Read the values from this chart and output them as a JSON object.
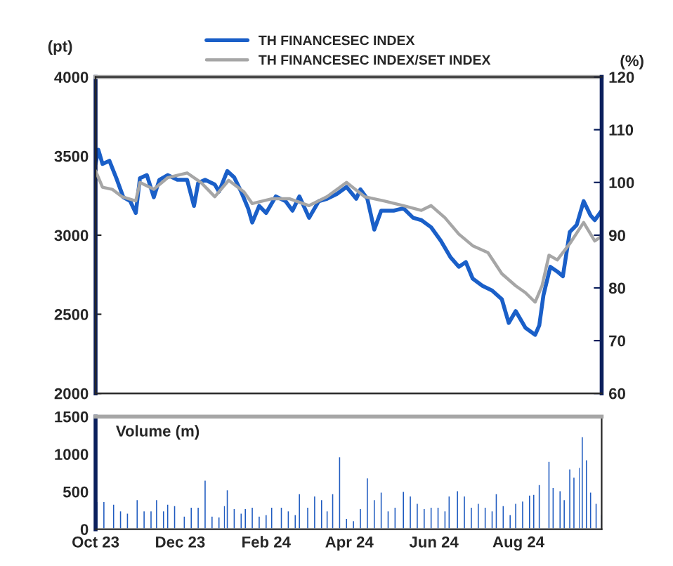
{
  "chart_data": [
    {
      "type": "line",
      "ylabel": "(pt)",
      "y2label": "(%)",
      "xlim": [
        "2023-10-01",
        "2024-09-30"
      ],
      "ylim": [
        2000,
        4000
      ],
      "yticks": [
        2000,
        2500,
        3000,
        3500,
        4000
      ],
      "y2lim": [
        60,
        120
      ],
      "y2ticks": [
        60,
        70,
        80,
        90,
        100,
        110,
        120
      ],
      "tick_labels": "y",
      "legend": "top",
      "grid": false,
      "series": [
        {
          "name": "TH FINANCESEC INDEX",
          "color": "#1a5fc8",
          "x": [
            "2023-10-01",
            "2023-10-03",
            "2023-10-06",
            "2023-10-11",
            "2023-10-16",
            "2023-10-21",
            "2023-10-26",
            "2023-10-30",
            "2023-11-02",
            "2023-11-07",
            "2023-11-12",
            "2023-11-16",
            "2023-11-22",
            "2023-11-29",
            "2023-12-06",
            "2023-12-11",
            "2023-12-14",
            "2023-12-19",
            "2023-12-26",
            "2023-12-29",
            "2024-01-04",
            "2024-01-09",
            "2024-01-14",
            "2024-01-19",
            "2024-01-22",
            "2024-01-27",
            "2024-02-01",
            "2024-02-08",
            "2024-02-15",
            "2024-02-20",
            "2024-02-25",
            "2024-03-03",
            "2024-03-10",
            "2024-03-16",
            "2024-03-23",
            "2024-03-30",
            "2024-04-06",
            "2024-04-09",
            "2024-04-14",
            "2024-04-19",
            "2024-04-24",
            "2024-05-03",
            "2024-05-10",
            "2024-05-17",
            "2024-05-23",
            "2024-05-30",
            "2024-06-06",
            "2024-06-13",
            "2024-06-19",
            "2024-06-24",
            "2024-06-29",
            "2024-07-06",
            "2024-07-13",
            "2024-07-20",
            "2024-07-25",
            "2024-07-30",
            "2024-08-06",
            "2024-08-13",
            "2024-08-16",
            "2024-08-19",
            "2024-08-24",
            "2024-08-29",
            "2024-09-02",
            "2024-09-07",
            "2024-09-12",
            "2024-09-17",
            "2024-09-22",
            "2024-09-25",
            "2024-09-30"
          ],
          "values": [
            3450,
            3540,
            3450,
            3470,
            3360,
            3240,
            3215,
            3140,
            3360,
            3380,
            3240,
            3350,
            3380,
            3350,
            3350,
            3185,
            3330,
            3350,
            3320,
            3275,
            3405,
            3365,
            3275,
            3170,
            3080,
            3185,
            3140,
            3245,
            3215,
            3155,
            3245,
            3110,
            3215,
            3230,
            3260,
            3305,
            3230,
            3290,
            3230,
            3035,
            3155,
            3155,
            3170,
            3110,
            3095,
            3050,
            2965,
            2860,
            2800,
            2830,
            2725,
            2680,
            2650,
            2595,
            2445,
            2520,
            2415,
            2370,
            2430,
            2620,
            2800,
            2770,
            2740,
            3020,
            3065,
            3215,
            3125,
            3095,
            3155
          ]
        },
        {
          "name": "TH FINANCESEC INDEX/SET INDEX",
          "color": "#a6a6a6",
          "axis": "y2",
          "x": [
            "2023-10-01",
            "2023-10-06",
            "2023-10-13",
            "2023-10-20",
            "2023-10-30",
            "2023-11-02",
            "2023-11-12",
            "2023-11-22",
            "2023-12-06",
            "2023-12-16",
            "2023-12-26",
            "2024-01-05",
            "2024-01-16",
            "2024-01-22",
            "2024-02-05",
            "2024-02-18",
            "2024-03-03",
            "2024-03-16",
            "2024-03-30",
            "2024-04-12",
            "2024-04-26",
            "2024-05-10",
            "2024-05-23",
            "2024-05-30",
            "2024-06-09",
            "2024-06-19",
            "2024-06-29",
            "2024-07-10",
            "2024-07-20",
            "2024-07-30",
            "2024-08-06",
            "2024-08-13",
            "2024-08-18",
            "2024-08-23",
            "2024-08-29",
            "2024-09-07",
            "2024-09-17",
            "2024-09-25",
            "2024-09-30"
          ],
          "values": [
            102.2,
            99.1,
            98.7,
            97.3,
            96.5,
            100.0,
            98.7,
            100.9,
            101.8,
            100.0,
            97.3,
            100.4,
            98.2,
            96.0,
            96.9,
            96.9,
            95.6,
            97.3,
            100.0,
            97.3,
            96.5,
            95.6,
            94.7,
            95.6,
            93.3,
            90.2,
            88.0,
            86.7,
            82.7,
            80.4,
            79.1,
            77.3,
            80.4,
            86.2,
            85.3,
            88.4,
            92.4,
            88.9,
            89.8
          ]
        }
      ]
    },
    {
      "type": "bar",
      "title": "Volume (m)",
      "xlim": [
        "2023-10-01",
        "2024-09-30"
      ],
      "ylim": [
        0,
        1500
      ],
      "yticks": [
        0,
        500,
        1000,
        1500
      ],
      "xticks": [
        {
          "value": "2023-10-01",
          "label": "Oct 23"
        },
        {
          "value": "2023-12-01",
          "label": "Dec 23"
        },
        {
          "value": "2024-02-01",
          "label": "Feb 24"
        },
        {
          "value": "2024-04-01",
          "label": "Apr 24"
        },
        {
          "value": "2024-06-01",
          "label": "Jun 24"
        },
        {
          "value": "2024-08-01",
          "label": "Aug 24"
        }
      ],
      "grid": false,
      "series": [
        {
          "color": "#1f5bc0",
          "x": [
            "2023-10-02",
            "2023-10-07",
            "2023-10-14",
            "2023-10-19",
            "2023-10-24",
            "2023-10-31",
            "2023-11-05",
            "2023-11-10",
            "2023-11-14",
            "2023-11-19",
            "2023-11-22",
            "2023-11-27",
            "2023-12-04",
            "2023-12-09",
            "2023-12-14",
            "2023-12-19",
            "2023-12-24",
            "2023-12-29",
            "2024-01-02",
            "2024-01-04",
            "2024-01-09",
            "2024-01-14",
            "2024-01-17",
            "2024-01-22",
            "2024-01-27",
            "2024-02-01",
            "2024-02-05",
            "2024-02-12",
            "2024-02-17",
            "2024-02-22",
            "2024-02-25",
            "2024-03-02",
            "2024-03-07",
            "2024-03-12",
            "2024-03-16",
            "2024-03-20",
            "2024-03-25",
            "2024-03-30",
            "2024-04-04",
            "2024-04-09",
            "2024-04-14",
            "2024-04-19",
            "2024-04-24",
            "2024-04-29",
            "2024-05-04",
            "2024-05-10",
            "2024-05-15",
            "2024-05-20",
            "2024-05-25",
            "2024-05-30",
            "2024-06-04",
            "2024-06-09",
            "2024-06-12",
            "2024-06-18",
            "2024-06-23",
            "2024-06-28",
            "2024-07-03",
            "2024-07-08",
            "2024-07-13",
            "2024-07-16",
            "2024-07-21",
            "2024-07-26",
            "2024-07-30",
            "2024-08-04",
            "2024-08-09",
            "2024-08-12",
            "2024-08-16",
            "2024-08-23",
            "2024-08-26",
            "2024-08-31",
            "2024-09-03",
            "2024-09-07",
            "2024-09-10",
            "2024-09-14",
            "2024-09-16",
            "2024-09-19",
            "2024-09-22",
            "2024-09-26",
            "2024-09-30"
          ],
          "values": [
            375,
            375,
            340,
            250,
            220,
            400,
            250,
            250,
            400,
            250,
            340,
            320,
            180,
            300,
            300,
            660,
            180,
            170,
            320,
            530,
            280,
            220,
            280,
            300,
            180,
            200,
            300,
            300,
            250,
            200,
            480,
            300,
            450,
            400,
            250,
            480,
            970,
            150,
            120,
            280,
            690,
            400,
            500,
            250,
            300,
            510,
            450,
            350,
            280,
            300,
            300,
            250,
            450,
            520,
            450,
            300,
            350,
            300,
            250,
            480,
            320,
            200,
            350,
            380,
            460,
            470,
            600,
            910,
            560,
            520,
            400,
            810,
            700,
            830,
            1240,
            930,
            500,
            350,
            200
          ]
        }
      ]
    }
  ]
}
